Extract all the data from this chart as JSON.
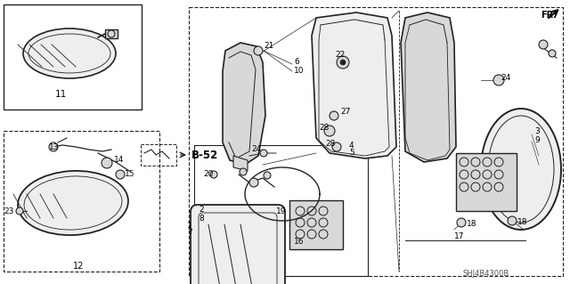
{
  "bg": "#ffffff",
  "lc": "#222222",
  "gray_fill": "#d8d8d8",
  "light_fill": "#eeeeee",
  "fr_text": "FR.",
  "part_num": "SHJ4B4300B"
}
